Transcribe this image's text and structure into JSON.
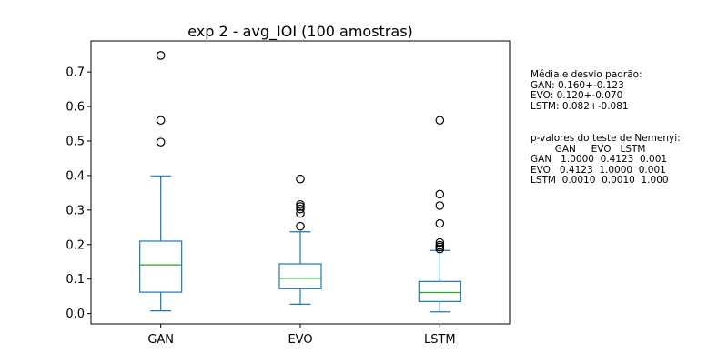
{
  "chart_data": {
    "type": "box",
    "title": "exp 2 - avg_IOI (100 amostras)",
    "xlabel": "",
    "ylabel": "",
    "categories": [
      "GAN",
      "EVO",
      "LSTM"
    ],
    "ylim": [
      -0.03,
      0.79
    ],
    "yticks": [
      0.0,
      0.1,
      0.2,
      0.3,
      0.4,
      0.5,
      0.6,
      0.7
    ],
    "ytick_labels": [
      "0.0",
      "0.1",
      "0.2",
      "0.3",
      "0.4",
      "0.5",
      "0.6",
      "0.7"
    ],
    "grid": false,
    "box_color": "#1f77b4",
    "median_color": "#2ca02c",
    "boxes": [
      {
        "label": "GAN",
        "whisker_low": 0.008,
        "q1": 0.062,
        "median": 0.141,
        "q3": 0.21,
        "whisker_high": 0.399,
        "fliers": [
          0.497,
          0.56,
          0.748
        ]
      },
      {
        "label": "EVO",
        "whisker_low": 0.027,
        "q1": 0.072,
        "median": 0.102,
        "q3": 0.144,
        "whisker_high": 0.237,
        "fliers": [
          0.253,
          0.29,
          0.303,
          0.31,
          0.316,
          0.39
        ]
      },
      {
        "label": "LSTM",
        "whisker_low": 0.005,
        "q1": 0.035,
        "median": 0.061,
        "q3": 0.093,
        "whisker_high": 0.183,
        "fliers": [
          0.187,
          0.193,
          0.198,
          0.206,
          0.261,
          0.313,
          0.346,
          0.56
        ]
      }
    ]
  },
  "annotations": {
    "stats": {
      "heading": "Média e desvio padrão:",
      "lines": [
        "GAN: 0.160+-0.123",
        "EVO: 0.120+-0.070",
        "LSTM: 0.082+-0.081"
      ]
    },
    "nemenyi": {
      "heading": "p-valores do teste de Nemenyi:",
      "header_row": "        GAN     EVO   LSTM",
      "rows": [
        "GAN   1.0000  0.4123  0.001",
        "EVO   0.4123  1.0000  0.001",
        "LSTM  0.0010  0.0010  1.000"
      ]
    }
  }
}
